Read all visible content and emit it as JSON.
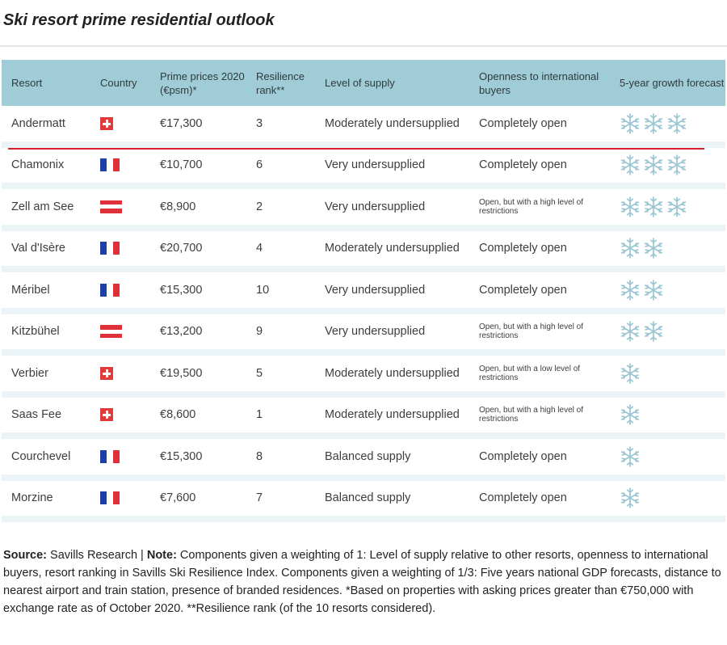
{
  "title": "Ski resort prime residential outlook",
  "colors": {
    "header_bg": "#9fccd6",
    "row_separator": "#eaf4f7",
    "highlight_line": "#d81e2b",
    "snowflake": "#9cc7d2"
  },
  "chart_data": {
    "type": "table",
    "columns": [
      "Resort",
      "Country",
      "Prime prices 2020 (€psm)*",
      "Resilience rank**",
      "Level of supply",
      "Openness to international buyers",
      "5-year growth forecast"
    ],
    "rows": [
      {
        "resort": "Andermatt",
        "country": "ch",
        "price": "€17,300",
        "rank": "3",
        "supply": "Moderately undersupplied",
        "openness": "Completely open",
        "openness_small": false,
        "growth": 3
      },
      {
        "resort": "Chamonix",
        "country": "fr",
        "price": "€10,700",
        "rank": "6",
        "supply": "Very undersupplied",
        "openness": "Completely open",
        "openness_small": false,
        "growth": 3
      },
      {
        "resort": "Zell am See",
        "country": "at",
        "price": "€8,900",
        "rank": "2",
        "supply": "Very undersupplied",
        "openness": "Open, but with a high level of restrictions",
        "openness_small": true,
        "growth": 3
      },
      {
        "resort": "Val d'Isère",
        "country": "fr",
        "price": "€20,700",
        "rank": "4",
        "supply": "Moderately undersupplied",
        "openness": "Completely open",
        "openness_small": false,
        "growth": 2
      },
      {
        "resort": "Méribel",
        "country": "fr",
        "price": "€15,300",
        "rank": "10",
        "supply": "Very undersupplied",
        "openness": "Completely open",
        "openness_small": false,
        "growth": 2
      },
      {
        "resort": "Kitzbühel",
        "country": "at",
        "price": "€13,200",
        "rank": "9",
        "supply": "Very undersupplied",
        "openness": "Open, but with a high level of restrictions",
        "openness_small": true,
        "growth": 2
      },
      {
        "resort": "Verbier",
        "country": "ch",
        "price": "€19,500",
        "rank": "5",
        "supply": "Moderately undersupplied",
        "openness": "Open, but with a low level of restrictions",
        "openness_small": true,
        "growth": 1
      },
      {
        "resort": "Saas Fee",
        "country": "ch",
        "price": "€8,600",
        "rank": "1",
        "supply": "Moderately undersupplied",
        "openness": "Open, but with a high level of restrictions",
        "openness_small": true,
        "growth": 1
      },
      {
        "resort": "Courchevel",
        "country": "fr",
        "price": "€15,300",
        "rank": "8",
        "supply": "Balanced supply",
        "openness": "Completely open",
        "openness_small": false,
        "growth": 1
      },
      {
        "resort": "Morzine",
        "country": "fr",
        "price": "€7,600",
        "rank": "7",
        "supply": "Balanced supply",
        "openness": "Completely open",
        "openness_small": false,
        "growth": 1
      }
    ]
  },
  "footnote": {
    "source_label": "Source:",
    "source_text": " Savills Research | ",
    "note_label": "Note:",
    "note_text": " Components given a weighting of 1: Level of supply relative to other resorts, openness to international buyers, resort ranking in Savills Ski Resilience Index. Components given a weighting of 1/3: Five years national GDP forecasts, distance to nearest airport and train station, presence of branded residences. *Based on properties with asking prices greater than €750,000 with exchange rate as of October 2020. **Resilience rank (of the 10 resorts considered)."
  }
}
